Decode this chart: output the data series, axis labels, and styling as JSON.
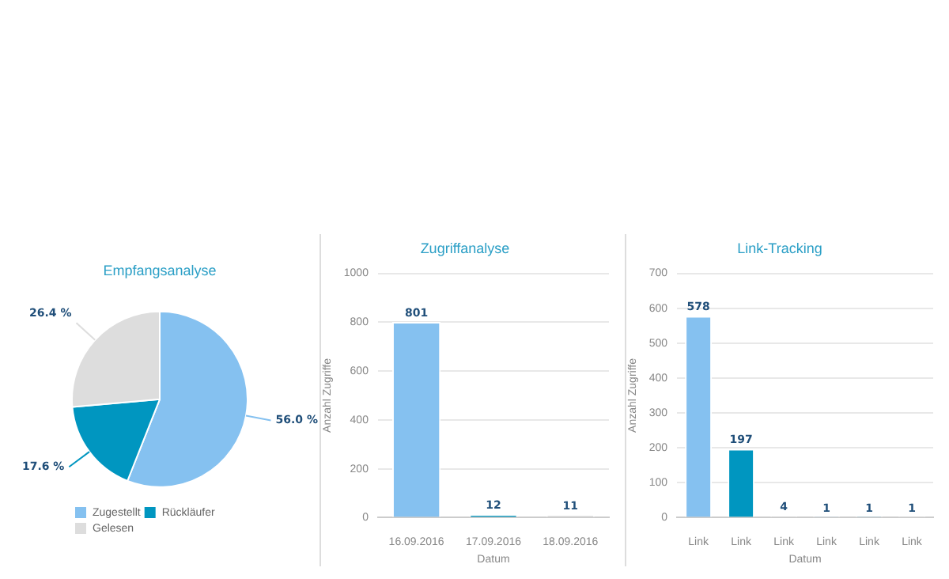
{
  "chart_data": [
    {
      "type": "pie",
      "title": "Empfangsanalyse",
      "categories": [
        "Zugestellt",
        "Rückläufer",
        "Gelesen"
      ],
      "values": [
        56.0,
        17.6,
        26.4
      ],
      "colors": [
        "#85c1f0",
        "#0096c0",
        "#dddddd"
      ],
      "value_labels": [
        "56.0 %",
        "17.6 %",
        "26.4 %"
      ],
      "legend": "bottom left"
    },
    {
      "type": "bar",
      "title": "Zugriffanalyse",
      "categories": [
        "16.09.2016",
        "17.09.2016",
        "18.09.2016"
      ],
      "values": [
        801,
        12,
        11
      ],
      "colors": [
        "#85c1f0",
        "#0096c0",
        "#dddddd"
      ],
      "xlabel": "Datum",
      "ylabel": "Anzahl Zugriffe",
      "ylim": [
        0,
        1000
      ],
      "yticks": [
        0,
        200,
        400,
        600,
        800,
        1000
      ],
      "grid": "y",
      "data_labels": true
    },
    {
      "type": "bar",
      "title": "Link-Tracking",
      "categories": [
        "Link",
        "Link",
        "Link",
        "Link",
        "Link",
        "Link"
      ],
      "values": [
        578,
        197,
        4,
        1,
        1,
        1
      ],
      "colors": [
        "#85c1f0",
        "#0096c0",
        "#dddddd",
        "#85c1f0",
        "#0096c0",
        "#dddddd"
      ],
      "xlabel": "Datum",
      "ylabel": "Anzahl Zugriffe",
      "ylim": [
        0,
        700
      ],
      "yticks": [
        0,
        100,
        200,
        300,
        400,
        500,
        600,
        700
      ],
      "grid": "y",
      "data_labels": true
    }
  ]
}
